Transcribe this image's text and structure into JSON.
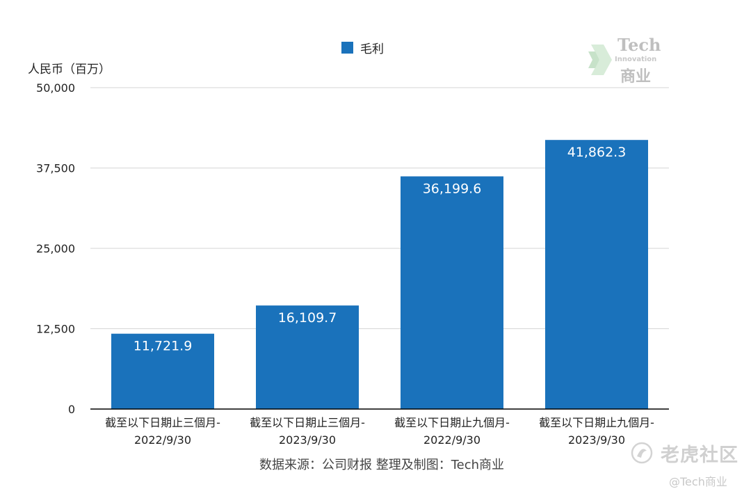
{
  "chart_data": {
    "type": "bar",
    "legend": [
      "毛利"
    ],
    "ylabel": "人民币（百万）",
    "categories": [
      [
        "截至以下日期止三個月-",
        "2022/9/30"
      ],
      [
        "截至以下日期止三個月-",
        "2023/9/30"
      ],
      [
        "截至以下日期止九個月-",
        "2022/9/30"
      ],
      [
        "截至以下日期止九個月-",
        "2023/9/30"
      ]
    ],
    "series": [
      {
        "name": "毛利",
        "values": [
          11721.9,
          16109.7,
          36199.6,
          41862.3
        ],
        "labels": [
          "11,721.9",
          "16,109.7",
          "36,199.6",
          "41,862.3"
        ]
      }
    ],
    "ylim": [
      0,
      50000
    ],
    "yticks": [
      0,
      12500,
      25000,
      37500,
      50000
    ],
    "ytick_labels": [
      "0",
      "12,500",
      "25,000",
      "37,500",
      "50,000"
    ],
    "grid": true,
    "legend_position": "top-center"
  },
  "colors": {
    "bar": "#1a72bb",
    "grid": "#d6d6d6",
    "axis": "#000000"
  },
  "source_note": "数据来源：公司财报 整理及制图：Tech商业",
  "logo": {
    "line1": "Tech",
    "line2": "Innovation",
    "line3": "商业",
    "icon": "chevron-arrow-icon"
  },
  "watermark": {
    "text": "老虎社区",
    "handle": "@Tech商业",
    "icon": "tiger-community-icon"
  }
}
